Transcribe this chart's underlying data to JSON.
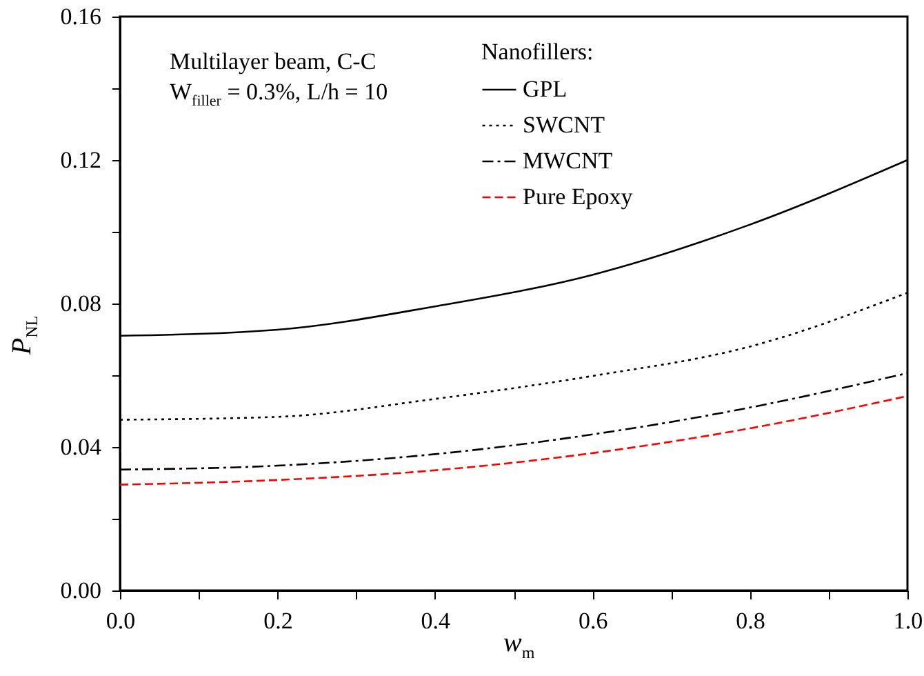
{
  "chart_data": {
    "type": "line",
    "xlabel": "w$_{m}$",
    "ylabel": "P$_{NL}$",
    "legend_title": "Nanofillers:",
    "annotations": [
      "Multilayer beam, C-C",
      "W$_{filler}$ = 0.3%, L/h = 10"
    ],
    "x": [
      0,
      0.2,
      0.4,
      0.6,
      0.8,
      1.0
    ],
    "series": [
      {
        "name": "GPL",
        "color": "#000000",
        "line_style": "solid",
        "values": [
          0.071,
          0.0727,
          0.0792,
          0.088,
          0.102,
          0.12
        ]
      },
      {
        "name": "SWCNT",
        "color": "#000000",
        "line_style": "dotted",
        "values": [
          0.0476,
          0.0484,
          0.0534,
          0.0598,
          0.068,
          0.083
        ]
      },
      {
        "name": "MWCNT",
        "color": "#000000",
        "line_style": "dashdot",
        "values": [
          0.0337,
          0.0348,
          0.038,
          0.0435,
          0.051,
          0.0606
        ]
      },
      {
        "name": "Pure Epoxy",
        "color": "#ff0000",
        "line_style": "dashed",
        "values": [
          0.0295,
          0.0308,
          0.0335,
          0.0383,
          0.0452,
          0.0542
        ]
      }
    ],
    "xlim": [
      0,
      1.0
    ],
    "ylim": [
      0,
      0.16
    ],
    "xticks": [
      {
        "value": 0,
        "label": "0.0"
      },
      {
        "value": 0.1,
        "label": null
      },
      {
        "value": 0.2,
        "label": "0.2"
      },
      {
        "value": 0.3,
        "label": null
      },
      {
        "value": 0.4,
        "label": "0.4"
      },
      {
        "value": 0.5,
        "label": null
      },
      {
        "value": 0.6,
        "label": "0.6"
      },
      {
        "value": 0.7,
        "label": null
      },
      {
        "value": 0.8,
        "label": "0.8"
      },
      {
        "value": 0.9,
        "label": null
      },
      {
        "value": 1.0,
        "label": "1.0"
      }
    ],
    "yticks": [
      {
        "value": 0,
        "label": "0.00"
      },
      {
        "value": 0.02,
        "label": null
      },
      {
        "value": 0.04,
        "label": "0.04"
      },
      {
        "value": 0.06,
        "label": null
      },
      {
        "value": 0.08,
        "label": "0.08"
      },
      {
        "value": 0.1,
        "label": null
      },
      {
        "value": 0.12,
        "label": "0.12"
      },
      {
        "value": 0.14,
        "label": null
      },
      {
        "value": 0.16,
        "label": "0.16"
      }
    ],
    "grid": false,
    "legend": "top",
    "marker": "none"
  }
}
